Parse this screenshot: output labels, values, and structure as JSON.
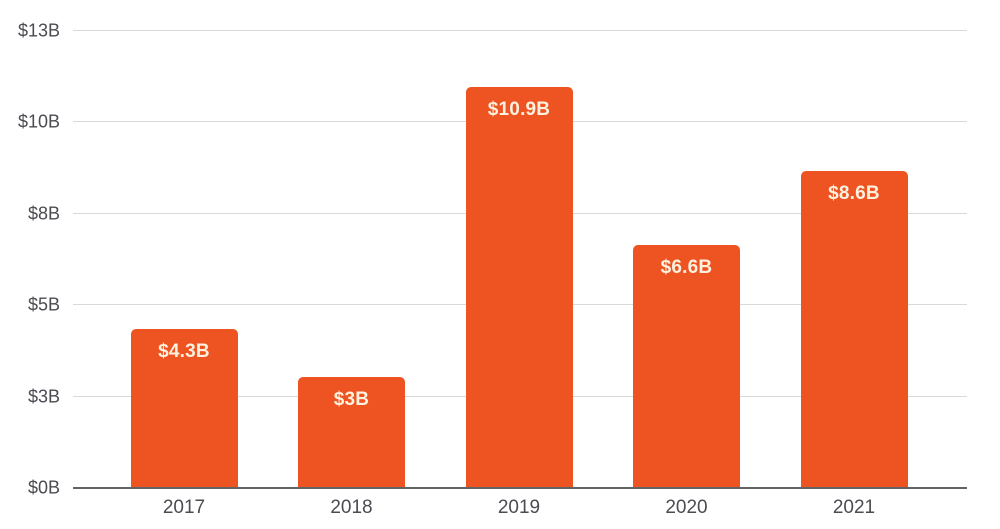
{
  "chart_data": {
    "type": "bar",
    "title": "",
    "xlabel": "",
    "ylabel": "",
    "categories": [
      "2017",
      "2018",
      "2019",
      "2020",
      "2021"
    ],
    "values": [
      4.3,
      3,
      10.9,
      6.6,
      8.6
    ],
    "bar_labels": [
      "$4.3B",
      "$3B",
      "$10.9B",
      "$6.6B",
      "$8.6B"
    ],
    "ylim": [
      0,
      13
    ],
    "y_ticks": [
      {
        "label": "$13B",
        "axis_value": 13
      },
      {
        "label": "$10B",
        "axis_value": 10.4
      },
      {
        "label": "$8B",
        "axis_value": 7.8
      },
      {
        "label": "$5B",
        "axis_value": 5.2
      },
      {
        "label": "$3B",
        "axis_value": 2.6
      },
      {
        "label": "$0B",
        "axis_value": 0
      }
    ],
    "grid": "horizontal-on",
    "legend": "none",
    "colors": {
      "bar": "#ee5322",
      "bar_label_text": "#fcf1de",
      "axis_text": "#4b4b52",
      "gridline": "#d9d9d9",
      "axis_line": "#636363",
      "background": "#ffffff"
    }
  }
}
